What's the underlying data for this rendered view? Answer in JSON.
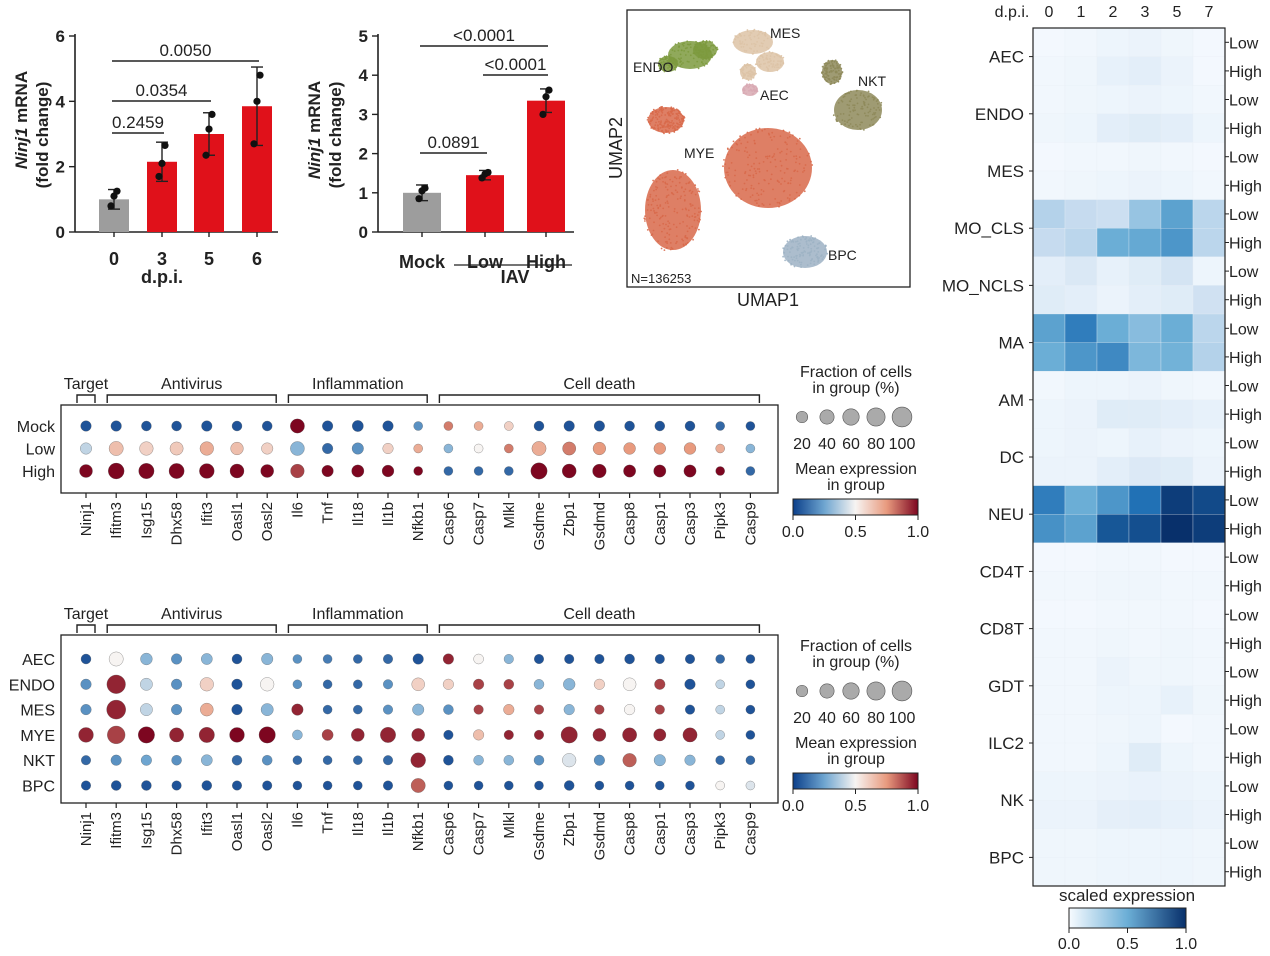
{
  "colors": {
    "bar_control": "#9d9d9d",
    "bar_treated": "#e0111a",
    "axis": "#222222",
    "umap_endo": "#7d9a3e",
    "umap_mes": "#ddc3a6",
    "umap_aec": "#d8a9b2",
    "umap_nkt": "#8e8a5a",
    "umap_mye": "#d8694a",
    "umap_bpc": "#9db2c4"
  },
  "chart_data": [
    {
      "id": "barA",
      "type": "bar",
      "ylabel_italic": "Ninj1",
      "ylabel_rest": " mRNA",
      "ylabel_line2": "(fold change)",
      "xlabel": "d.p.i.",
      "categories": [
        "0",
        "3",
        "5",
        "6"
      ],
      "values": [
        1.0,
        2.15,
        3.0,
        3.85
      ],
      "errors": [
        0.3,
        0.6,
        0.65,
        1.2
      ],
      "points": [
        [
          0.8,
          1.1,
          1.25
        ],
        [
          1.7,
          2.1,
          2.65
        ],
        [
          2.35,
          3.15,
          3.6
        ],
        [
          2.7,
          4.0,
          4.8
        ]
      ],
      "ylim": [
        0,
        6
      ],
      "yticks": [
        "0",
        "2",
        "4",
        "6"
      ],
      "comparisons": [
        {
          "from": 0,
          "to": 1,
          "label": "0.2459"
        },
        {
          "from": 0,
          "to": 2,
          "label": "0.0354"
        },
        {
          "from": 0,
          "to": 3,
          "label": "0.0050"
        }
      ]
    },
    {
      "id": "barB",
      "type": "bar",
      "ylabel_italic": "Ninj1",
      "ylabel_rest": " mRNA",
      "ylabel_line2": "(fold change)",
      "categories": [
        "Mock",
        "Low",
        "High"
      ],
      "group_label": "IAV",
      "values": [
        1.0,
        1.45,
        3.35
      ],
      "errors": [
        0.2,
        0.12,
        0.3
      ],
      "points": [
        [
          0.85,
          1.05,
          1.12
        ],
        [
          1.38,
          1.48,
          1.52
        ],
        [
          3.0,
          3.45,
          3.62
        ]
      ],
      "ylim": [
        0,
        5
      ],
      "yticks": [
        "0",
        "1",
        "2",
        "3",
        "4",
        "5"
      ],
      "comparisons": [
        {
          "from": 0,
          "to": 1,
          "label": "0.0891"
        },
        {
          "from": 1,
          "to": 2,
          "label": "<0.0001"
        },
        {
          "from": 0,
          "to": 2,
          "label": "<0.0001"
        }
      ]
    },
    {
      "id": "umap",
      "type": "scatter",
      "xlabel": "UMAP1",
      "ylabel": "UMAP2",
      "n_label": "N=136253",
      "clusters": [
        "ENDO",
        "MES",
        "AEC",
        "NKT",
        "MYE",
        "BPC"
      ]
    },
    {
      "id": "dotA",
      "type": "scatter",
      "groups": [
        {
          "label": "Target",
          "span": [
            0,
            0
          ]
        },
        {
          "label": "Antivirus",
          "span": [
            1,
            6
          ]
        },
        {
          "label": "Inflammation",
          "span": [
            7,
            11
          ]
        },
        {
          "label": "Cell death",
          "span": [
            12,
            22
          ]
        }
      ],
      "genes": [
        "Ninj1",
        "Ifitm3",
        "Isg15",
        "Dhx58",
        "Ifit3",
        "Oasl1",
        "Oasl2",
        "Il6",
        "Tnf",
        "Il18",
        "Il1b",
        "Nfkb1",
        "Casp6",
        "Casp7",
        "Mlkl",
        "Gsdme",
        "Zbp1",
        "Gsdmd",
        "Casp8",
        "Casp1",
        "Casp3",
        "Pipk3",
        "Casp9"
      ],
      "rows": [
        "Mock",
        "Low",
        "High"
      ],
      "fraction": [
        [
          15,
          15,
          12,
          12,
          15,
          12,
          12,
          40,
          15,
          18,
          15,
          8,
          8,
          8,
          8,
          12,
          15,
          15,
          12,
          12,
          12,
          8,
          8
        ],
        [
          20,
          40,
          35,
          32,
          35,
          28,
          20,
          38,
          15,
          20,
          15,
          8,
          8,
          8,
          8,
          40,
          32,
          28,
          22,
          22,
          22,
          8,
          8
        ],
        [
          30,
          55,
          50,
          48,
          45,
          38,
          30,
          35,
          20,
          25,
          22,
          8,
          8,
          8,
          8,
          60,
          38,
          35,
          25,
          25,
          25,
          8,
          8
        ]
      ],
      "expression": [
        [
          0.05,
          0.05,
          0.05,
          0.05,
          0.05,
          0.05,
          0.05,
          1.0,
          0.05,
          0.05,
          0.05,
          0.2,
          0.8,
          0.7,
          0.6,
          0.05,
          0.05,
          0.05,
          0.05,
          0.05,
          0.05,
          0.1,
          0.05
        ],
        [
          0.4,
          0.65,
          0.6,
          0.62,
          0.7,
          0.65,
          0.6,
          0.3,
          0.1,
          0.2,
          0.6,
          0.7,
          0.3,
          0.5,
          0.8,
          0.7,
          0.8,
          0.75,
          0.75,
          0.75,
          0.75,
          0.7,
          0.3
        ],
        [
          1.0,
          1.0,
          1.0,
          1.0,
          1.0,
          1.0,
          1.0,
          0.9,
          1.0,
          1.0,
          1.0,
          1.0,
          0.1,
          0.1,
          0.1,
          1.0,
          1.0,
          1.0,
          1.0,
          1.0,
          1.0,
          1.0,
          0.1
        ]
      ],
      "size_legend": {
        "title1": "Fraction of cells",
        "title2": "in group (%)",
        "labels": [
          "20",
          "40",
          "60",
          "80",
          "100"
        ]
      },
      "color_legend": {
        "title1": "Mean expression",
        "title2": "in group",
        "ticks": [
          "0.0",
          "0.5",
          "1.0"
        ]
      }
    },
    {
      "id": "dotB",
      "type": "scatter",
      "groups": [
        {
          "label": "Target",
          "span": [
            0,
            0
          ]
        },
        {
          "label": "Antivirus",
          "span": [
            1,
            6
          ]
        },
        {
          "label": "Inflammation",
          "span": [
            7,
            11
          ]
        },
        {
          "label": "Cell death",
          "span": [
            12,
            22
          ]
        }
      ],
      "genes": [
        "Ninj1",
        "Ifitm3",
        "Isg15",
        "Dhx58",
        "Ifit3",
        "Oasl1",
        "Oasl2",
        "Il6",
        "Tnf",
        "Il18",
        "Il1b",
        "Nfkb1",
        "Casp6",
        "Casp7",
        "Mlkl",
        "Gsdme",
        "Zbp1",
        "Gsdmd",
        "Casp8",
        "Casp1",
        "Casp3",
        "Pipk3",
        "Casp9"
      ],
      "rows": [
        "AEC",
        "ENDO",
        "MES",
        "MYE",
        "NKT",
        "BPC"
      ],
      "fraction": [
        [
          12,
          40,
          22,
          15,
          18,
          12,
          20,
          8,
          8,
          8,
          10,
          15,
          15,
          12,
          10,
          10,
          10,
          10,
          12,
          10,
          10,
          8,
          8
        ],
        [
          15,
          85,
          25,
          15,
          35,
          15,
          35,
          8,
          8,
          8,
          10,
          30,
          15,
          15,
          12,
          12,
          22,
          15,
          30,
          15,
          15,
          8,
          8
        ],
        [
          15,
          90,
          25,
          15,
          30,
          15,
          25,
          20,
          8,
          8,
          10,
          20,
          12,
          10,
          15,
          10,
          15,
          10,
          15,
          10,
          10,
          8,
          8
        ],
        [
          45,
          75,
          60,
          40,
          50,
          45,
          60,
          12,
          18,
          30,
          50,
          30,
          10,
          15,
          10,
          10,
          60,
          30,
          40,
          25,
          40,
          8,
          8
        ],
        [
          10,
          15,
          15,
          12,
          18,
          12,
          12,
          8,
          8,
          8,
          10,
          45,
          12,
          12,
          12,
          12,
          35,
          15,
          35,
          20,
          15,
          8,
          8
        ],
        [
          10,
          12,
          12,
          10,
          12,
          10,
          10,
          8,
          8,
          8,
          10,
          40,
          8,
          8,
          8,
          8,
          12,
          8,
          8,
          8,
          8,
          8,
          8
        ]
      ],
      "expression": [
        [
          0.05,
          0.5,
          0.3,
          0.2,
          0.3,
          0.05,
          0.3,
          0.2,
          0.15,
          0.1,
          0.1,
          0.05,
          0.95,
          0.5,
          0.3,
          0.05,
          0.05,
          0.05,
          0.05,
          0.05,
          0.05,
          0.1,
          0.05
        ],
        [
          0.2,
          0.95,
          0.4,
          0.2,
          0.6,
          0.05,
          0.5,
          0.2,
          0.1,
          0.1,
          0.2,
          0.6,
          0.6,
          0.9,
          0.9,
          0.3,
          0.3,
          0.6,
          0.5,
          0.9,
          0.05,
          0.4,
          0.05
        ],
        [
          0.2,
          0.95,
          0.4,
          0.2,
          0.7,
          0.05,
          0.3,
          0.95,
          0.1,
          0.1,
          0.2,
          0.3,
          0.2,
          0.9,
          0.7,
          0.9,
          0.3,
          0.9,
          0.5,
          0.9,
          0.05,
          0.4,
          0.05
        ],
        [
          0.95,
          0.9,
          1.0,
          0.95,
          0.95,
          1.0,
          1.0,
          0.3,
          0.9,
          0.95,
          0.95,
          0.95,
          0.05,
          0.65,
          0.95,
          0.95,
          0.95,
          0.95,
          0.95,
          0.95,
          0.95,
          0.4,
          0.05
        ],
        [
          0.1,
          0.2,
          0.25,
          0.2,
          0.3,
          0.1,
          0.2,
          0.1,
          0.1,
          0.1,
          0.1,
          0.95,
          0.05,
          0.3,
          0.3,
          0.2,
          0.45,
          0.2,
          0.85,
          0.3,
          0.3,
          0.1,
          0.1
        ],
        [
          0.05,
          0.05,
          0.05,
          0.05,
          0.05,
          0.05,
          0.05,
          0.05,
          0.05,
          0.05,
          0.05,
          0.85,
          0.05,
          0.05,
          0.05,
          0.05,
          0.05,
          0.05,
          0.05,
          0.05,
          0.05,
          0.5,
          0.45
        ]
      ],
      "size_legend": {
        "title1": "Fraction of cells",
        "title2": "in group (%)",
        "labels": [
          "20",
          "40",
          "60",
          "80",
          "100"
        ]
      },
      "color_legend": {
        "title1": "Mean expression",
        "title2": "in group",
        "ticks": [
          "0.0",
          "0.5",
          "1.0"
        ]
      }
    },
    {
      "id": "heatmap",
      "type": "heatmap",
      "header": "d.p.i.",
      "columns": [
        "0",
        "1",
        "2",
        "3",
        "5",
        "7"
      ],
      "cell_types": [
        "AEC",
        "ENDO",
        "MES",
        "MO_CLS",
        "MO_NCLS",
        "MA",
        "AM",
        "DC",
        "NEU",
        "CD4T",
        "CD8T",
        "GDT",
        "ILC2",
        "NK",
        "BPC"
      ],
      "row_labels": [
        "Low",
        "High"
      ],
      "values": [
        [
          0.02,
          0.03,
          0.05,
          0.06,
          0.04,
          0.02
        ],
        [
          0.03,
          0.04,
          0.08,
          0.1,
          0.06,
          0.02
        ],
        [
          0.03,
          0.04,
          0.05,
          0.06,
          0.05,
          0.03
        ],
        [
          0.04,
          0.05,
          0.1,
          0.12,
          0.1,
          0.05
        ],
        [
          0.02,
          0.03,
          0.03,
          0.04,
          0.03,
          0.02
        ],
        [
          0.03,
          0.04,
          0.05,
          0.06,
          0.05,
          0.03
        ],
        [
          0.3,
          0.25,
          0.22,
          0.38,
          0.55,
          0.28
        ],
        [
          0.25,
          0.28,
          0.5,
          0.52,
          0.6,
          0.28
        ],
        [
          0.1,
          0.15,
          0.08,
          0.12,
          0.18,
          0.05
        ],
        [
          0.12,
          0.1,
          0.06,
          0.1,
          0.12,
          0.2
        ],
        [
          0.55,
          0.7,
          0.5,
          0.42,
          0.5,
          0.28
        ],
        [
          0.5,
          0.6,
          0.65,
          0.45,
          0.48,
          0.3
        ],
        [
          0.03,
          0.05,
          0.05,
          0.06,
          0.04,
          0.03
        ],
        [
          0.05,
          0.06,
          0.12,
          0.12,
          0.1,
          0.08
        ],
        [
          0.05,
          0.06,
          0.05,
          0.08,
          0.06,
          0.05
        ],
        [
          0.06,
          0.06,
          0.1,
          0.14,
          0.12,
          0.06
        ],
        [
          0.7,
          0.5,
          0.6,
          0.75,
          0.95,
          0.9
        ],
        [
          0.62,
          0.55,
          0.85,
          0.88,
          1.0,
          0.95
        ],
        [
          0.02,
          0.02,
          0.03,
          0.03,
          0.02,
          0.02
        ],
        [
          0.03,
          0.03,
          0.04,
          0.04,
          0.03,
          0.03
        ],
        [
          0.02,
          0.02,
          0.03,
          0.03,
          0.03,
          0.02
        ],
        [
          0.03,
          0.03,
          0.04,
          0.03,
          0.04,
          0.03
        ],
        [
          0.03,
          0.03,
          0.06,
          0.04,
          0.04,
          0.03
        ],
        [
          0.03,
          0.03,
          0.05,
          0.05,
          0.08,
          0.04
        ],
        [
          0.03,
          0.03,
          0.04,
          0.05,
          0.02,
          0.03
        ],
        [
          0.03,
          0.03,
          0.05,
          0.12,
          0.05,
          0.03
        ],
        [
          0.05,
          0.05,
          0.06,
          0.07,
          0.06,
          0.05
        ],
        [
          0.06,
          0.06,
          0.09,
          0.1,
          0.08,
          0.06
        ],
        [
          0.04,
          0.04,
          0.05,
          0.05,
          0.05,
          0.04
        ],
        [
          0.04,
          0.04,
          0.05,
          0.05,
          0.05,
          0.04
        ]
      ],
      "legend_title": "scaled expression",
      "legend_ticks": [
        "0.0",
        "0.5",
        "1.0"
      ]
    }
  ]
}
